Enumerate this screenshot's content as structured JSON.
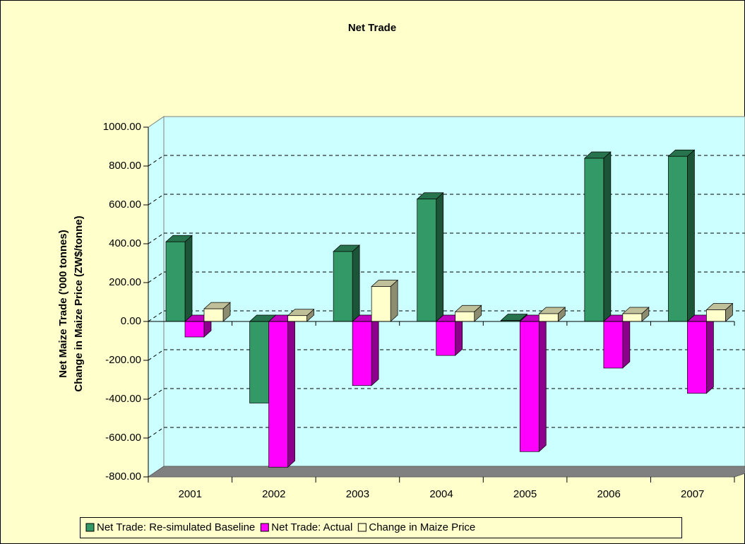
{
  "chart_data": {
    "type": "bar3d",
    "title": "Net Trade",
    "y_label_lines": [
      "Net Maize Trade ('000 tonnes)",
      "Change in Maize Price (ZW$/tonne)"
    ],
    "categories": [
      "2001",
      "2002",
      "2003",
      "2004",
      "2005",
      "2006",
      "2007"
    ],
    "series": [
      {
        "name": "Net Trade: Re-simulated Baseline",
        "color": "#339966",
        "values": [
          410,
          -420,
          360,
          630,
          5,
          840,
          850
        ]
      },
      {
        "name": "Net Trade: Actual",
        "color": "#ff00ff",
        "values": [
          -80,
          -750,
          -330,
          -175,
          -670,
          -240,
          -370
        ]
      },
      {
        "name": "Change in Maize Price",
        "color": "#ffffcc",
        "values": [
          65,
          30,
          180,
          50,
          40,
          40,
          60
        ]
      }
    ],
    "ylim": [
      -800,
      1000
    ],
    "yticks": [
      {
        "value": -800,
        "label": "-800.00"
      },
      {
        "value": -600,
        "label": "-600.00"
      },
      {
        "value": -400,
        "label": "-400.00"
      },
      {
        "value": -200,
        "label": "-200.00"
      },
      {
        "value": 0,
        "label": "0.00"
      },
      {
        "value": 200,
        "label": "200.00"
      },
      {
        "value": 400,
        "label": "400.00"
      },
      {
        "value": 600,
        "label": "600.00"
      },
      {
        "value": 800,
        "label": "800.00"
      },
      {
        "value": 1000,
        "label": "1000.00"
      }
    ],
    "grid": true
  }
}
